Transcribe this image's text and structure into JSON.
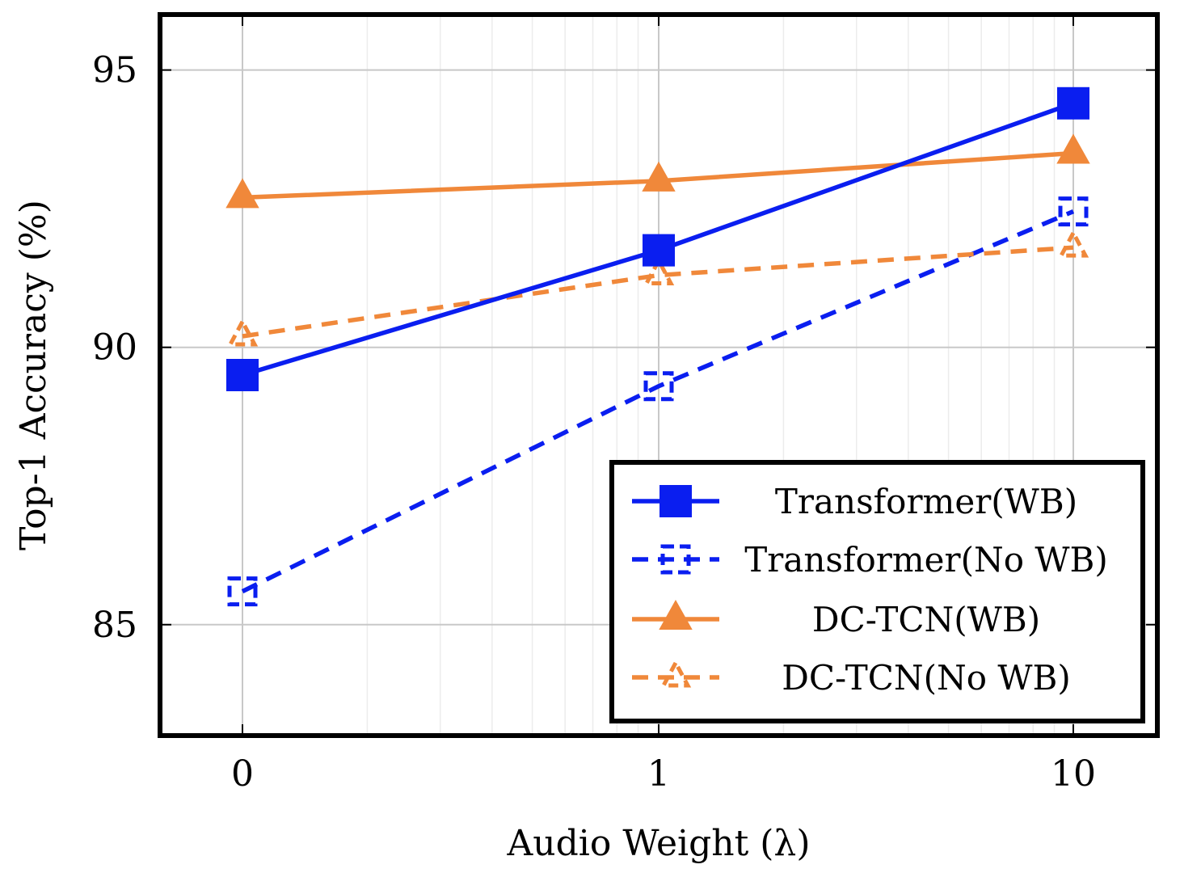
{
  "chart_data": {
    "type": "line",
    "x_categories": [
      "0",
      "1",
      "10"
    ],
    "xlabel": "Audio Weight (λ)",
    "ylabel": "Top-1 Accuracy (%)",
    "ylim": [
      83,
      96
    ],
    "yticks": [
      85,
      90,
      95
    ],
    "grid": true,
    "legend_position": "bottom-right",
    "series": [
      {
        "name": "Transformer(WB)",
        "values": [
          89.5,
          91.75,
          94.4
        ],
        "color": "#0a1ef0",
        "dash": "solid",
        "marker": "square-filled"
      },
      {
        "name": "Transformer(No WB)",
        "values": [
          85.6,
          89.3,
          92.45
        ],
        "color": "#0a1ef0",
        "dash": "dashed",
        "marker": "square-open"
      },
      {
        "name": "DC-TCN(WB)",
        "values": [
          92.7,
          93.0,
          93.5
        ],
        "color": "#f0883a",
        "dash": "solid",
        "marker": "triangle-filled"
      },
      {
        "name": "DC-TCN(No WB)",
        "values": [
          90.2,
          91.3,
          91.8
        ],
        "color": "#f0883a",
        "dash": "dashed",
        "marker": "triangle-open"
      }
    ]
  }
}
